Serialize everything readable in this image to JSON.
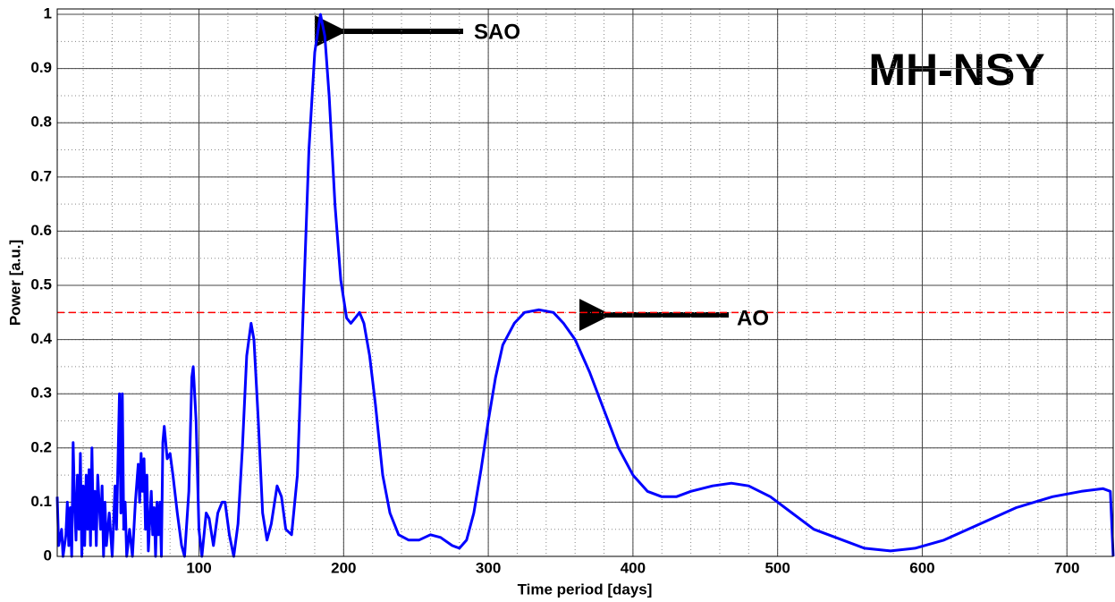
{
  "chart_data": {
    "type": "line",
    "title": "MH-NSY",
    "xlabel": "Time period [days]",
    "ylabel": "Power [a.u.]",
    "x": [
      2,
      3,
      5,
      6,
      8,
      9,
      10,
      11,
      12,
      13,
      14,
      15,
      16,
      17,
      18,
      19,
      20,
      21,
      22,
      23,
      24,
      25,
      26,
      27,
      28,
      29,
      30,
      31,
      32,
      33,
      34,
      35,
      36,
      38,
      40,
      42,
      43,
      45,
      46,
      47,
      48,
      49,
      50,
      52,
      54,
      56,
      58,
      59,
      60,
      61,
      62,
      63,
      64,
      65,
      67,
      68,
      69,
      70,
      71,
      72,
      73,
      74,
      75,
      76,
      78,
      80,
      82,
      85,
      88,
      90,
      93,
      95,
      96,
      98,
      100,
      102,
      105,
      107,
      110,
      113,
      116,
      118,
      121,
      124,
      127,
      130,
      133,
      136,
      138,
      141,
      144,
      147,
      150,
      154,
      157,
      160,
      164,
      168,
      172,
      176,
      180,
      184,
      187,
      190,
      194,
      198,
      202,
      205,
      208,
      211,
      214,
      218,
      222,
      227,
      232,
      238,
      245,
      252,
      260,
      267,
      275,
      280,
      285,
      290,
      295,
      300,
      305,
      310,
      318,
      325,
      335,
      345,
      352,
      360,
      370,
      380,
      390,
      400,
      410,
      420,
      430,
      440,
      455,
      468,
      480,
      495,
      510,
      525,
      545,
      560,
      578,
      595,
      615,
      640,
      665,
      690,
      710,
      725,
      730,
      732
    ],
    "series": [
      {
        "name": "MH-NSY",
        "color": "#0000ff",
        "values": [
          0.11,
          0.02,
          0.05,
          0.0,
          0.04,
          0.1,
          0.02,
          0.09,
          0.0,
          0.21,
          0.1,
          0.03,
          0.15,
          0.05,
          0.19,
          0.0,
          0.13,
          0.02,
          0.15,
          0.05,
          0.16,
          0.02,
          0.2,
          0.05,
          0.12,
          0.02,
          0.15,
          0.1,
          0.05,
          0.13,
          0.0,
          0.1,
          0.02,
          0.08,
          0.0,
          0.13,
          0.05,
          0.3,
          0.08,
          0.3,
          0.05,
          0.1,
          0.0,
          0.05,
          0.0,
          0.1,
          0.17,
          0.1,
          0.19,
          0.12,
          0.18,
          0.05,
          0.15,
          0.01,
          0.12,
          0.04,
          0.09,
          0.0,
          0.1,
          0.04,
          0.1,
          0.0,
          0.21,
          0.24,
          0.18,
          0.19,
          0.15,
          0.08,
          0.02,
          0.0,
          0.12,
          0.33,
          0.35,
          0.25,
          0.05,
          0.0,
          0.08,
          0.07,
          0.02,
          0.08,
          0.1,
          0.1,
          0.04,
          0.0,
          0.06,
          0.2,
          0.37,
          0.43,
          0.4,
          0.25,
          0.08,
          0.03,
          0.06,
          0.13,
          0.11,
          0.05,
          0.04,
          0.15,
          0.45,
          0.75,
          0.93,
          1.0,
          0.96,
          0.85,
          0.65,
          0.51,
          0.44,
          0.43,
          0.44,
          0.45,
          0.43,
          0.37,
          0.28,
          0.15,
          0.08,
          0.04,
          0.03,
          0.03,
          0.04,
          0.035,
          0.02,
          0.015,
          0.03,
          0.08,
          0.16,
          0.25,
          0.33,
          0.39,
          0.43,
          0.45,
          0.455,
          0.45,
          0.43,
          0.4,
          0.34,
          0.27,
          0.2,
          0.15,
          0.12,
          0.11,
          0.11,
          0.12,
          0.13,
          0.135,
          0.13,
          0.11,
          0.08,
          0.05,
          0.03,
          0.015,
          0.01,
          0.015,
          0.03,
          0.06,
          0.09,
          0.11,
          0.12,
          0.125,
          0.12,
          0.0
        ]
      }
    ],
    "threshold": {
      "value": 0.45,
      "color": "#ff0000"
    },
    "annotations": [
      {
        "text": "SAO"
      },
      {
        "text": "AO"
      }
    ],
    "xlim": [
      2,
      732
    ],
    "ylim": [
      0,
      1.01
    ],
    "xticks": [
      100,
      200,
      300,
      400,
      500,
      600,
      700
    ],
    "yticks": [
      0,
      0.1,
      0.2,
      0.3,
      0.4,
      0.5,
      0.6,
      0.7,
      0.8,
      0.9,
      1
    ],
    "grid": true,
    "minor_grid": true
  }
}
